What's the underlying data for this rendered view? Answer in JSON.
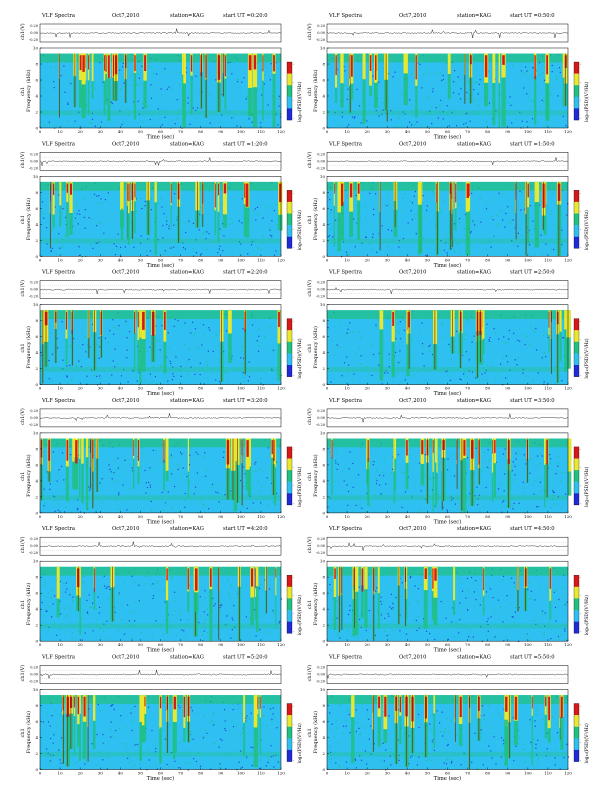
{
  "header": {
    "title": "VLF Spectra",
    "date": "Oct7,2010",
    "station": "station=KAG",
    "start_prefix": "start  UT ="
  },
  "axes": {
    "ch_label": "ch1(V)",
    "ch_ticks": [
      "0.20",
      "0.00",
      "-0.20"
    ],
    "freq_label": "Frequency (kHz)",
    "freq_prefix": "ch1",
    "freq_ticks": [
      "0",
      "2",
      "4",
      "6",
      "8",
      "10"
    ],
    "time_label": "Time  (sec)",
    "time_ticks": [
      "0",
      "10",
      "20",
      "30",
      "40",
      "50",
      "60",
      "70",
      "80",
      "90",
      "100",
      "110",
      "120"
    ],
    "colorbar_label": "log₁₀(PSD)(V²/Hz)",
    "colorbar_ticks": [
      "-",
      "-",
      "-",
      "-"
    ]
  },
  "colors": {
    "background": "#2ec0f0",
    "blue": "#1f2bd6",
    "green": "#20c080",
    "yellow": "#e8e830",
    "red": "#d81818",
    "brown": "#7a1a10"
  },
  "chart_data": [
    {
      "type": "heatmap",
      "start_time": "0:20:0",
      "x_range": [
        0,
        120
      ],
      "y_range": [
        0,
        10
      ],
      "seed": 11
    },
    {
      "type": "heatmap",
      "start_time": "0:50:0",
      "x_range": [
        0,
        120
      ],
      "y_range": [
        0,
        10
      ],
      "seed": 23
    },
    {
      "type": "heatmap",
      "start_time": "1:20:0",
      "x_range": [
        0,
        120
      ],
      "y_range": [
        0,
        10
      ],
      "seed": 37
    },
    {
      "type": "heatmap",
      "start_time": "1:50:0",
      "x_range": [
        0,
        120
      ],
      "y_range": [
        0,
        10
      ],
      "seed": 41
    },
    {
      "type": "heatmap",
      "start_time": "2:20:0",
      "x_range": [
        0,
        120
      ],
      "y_range": [
        0,
        10
      ],
      "seed": 53
    },
    {
      "type": "heatmap",
      "start_time": "2:50:0",
      "x_range": [
        0,
        120
      ],
      "y_range": [
        0,
        10
      ],
      "seed": 67
    },
    {
      "type": "heatmap",
      "start_time": "3:20:0",
      "x_range": [
        0,
        120
      ],
      "y_range": [
        0,
        10
      ],
      "seed": 71
    },
    {
      "type": "heatmap",
      "start_time": "3:50:0",
      "x_range": [
        0,
        120
      ],
      "y_range": [
        0,
        10
      ],
      "seed": 83
    },
    {
      "type": "heatmap",
      "start_time": "4:20:0",
      "x_range": [
        0,
        120
      ],
      "y_range": [
        0,
        10
      ],
      "seed": 97
    },
    {
      "type": "heatmap",
      "start_time": "4:50:0",
      "x_range": [
        0,
        120
      ],
      "y_range": [
        0,
        10
      ],
      "seed": 101
    },
    {
      "type": "heatmap",
      "start_time": "5:20:0",
      "x_range": [
        0,
        120
      ],
      "y_range": [
        0,
        10
      ],
      "seed": 113
    },
    {
      "type": "heatmap",
      "start_time": "5:50:0",
      "x_range": [
        0,
        120
      ],
      "y_range": [
        0,
        10
      ],
      "seed": 127
    }
  ]
}
